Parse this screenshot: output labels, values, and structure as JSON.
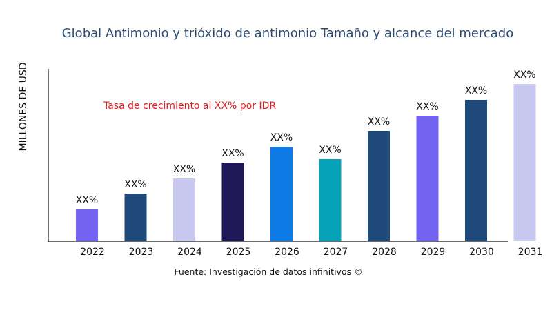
{
  "chart_data": {
    "type": "bar",
    "title": "Global Antimonio y trióxido de antimonio Tamaño y alcance del mercado",
    "xlabel": "",
    "ylabel": "MILLONES DE USD",
    "categories": [
      "2022",
      "2023",
      "2024",
      "2025",
      "2026",
      "2027",
      "2028",
      "2029",
      "2030",
      "2031"
    ],
    "values": [
      46,
      69,
      91,
      114,
      137,
      119,
      160,
      182,
      205,
      228
    ],
    "data_labels": [
      "XX%",
      "XX%",
      "XX%",
      "XX%",
      "XX%",
      "XX%",
      "XX%",
      "XX%",
      "XX%",
      "XX%"
    ],
    "colors": [
      "#7263f0",
      "#1f4a7a",
      "#c9c9ef",
      "#1e1856",
      "#0e7be5",
      "#05a2b8",
      "#1f4a7a",
      "#7263f0",
      "#1f4a7a",
      "#c9c9ef"
    ],
    "ylim": [
      0,
      250
    ],
    "grid": false,
    "legend": "none",
    "annotation": "Tasa de crecimiento al XX% por IDR",
    "source": "Fuente: Investigación de datos infinitivos ©"
  }
}
